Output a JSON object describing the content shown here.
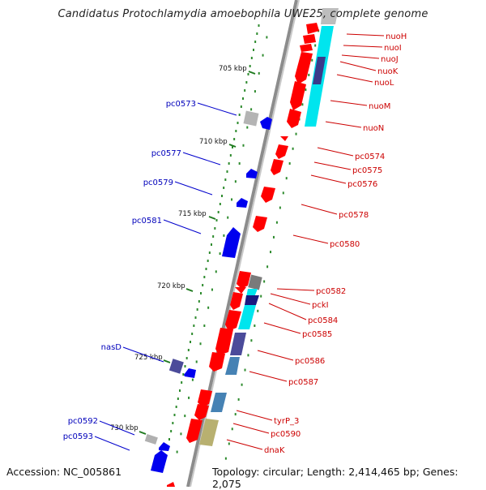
{
  "title": "Candidatus Protochlamydia amoebophila UWE25, complete genome",
  "accession": "Accession: NC_005861",
  "topology": "Topology: circular; Length: 2,414,465 bp; Genes: 2,075",
  "colors": {
    "forward_gene": "#ff0000",
    "reverse_gene": "#0000ee",
    "label_forward": "#cc0000",
    "label_reverse": "#0000bb",
    "backbone": "#888888",
    "tick": "#2a8a2a",
    "cyan_cog": "#00e5ee",
    "navy_cog": "#1a1a80",
    "slate_cog": "#4b4b9a",
    "steel_cog": "#4682b4",
    "olive_cog": "#b8b070",
    "grey_cog": "#a8a8a8"
  },
  "kbp_labels": [
    "705 kbp",
    "710 kbp",
    "715 kbp",
    "720 kbp",
    "725 kbp",
    "730 kbp"
  ],
  "left_labels": [
    "pc0573",
    "pc0577",
    "pc0579",
    "pc0581",
    "nasD",
    "pc0592",
    "pc0593"
  ],
  "right_labels": [
    "nuoH",
    "nuoI",
    "nuoJ",
    "nuoK",
    "nuoL",
    "nuoM",
    "nuoN",
    "pc0574",
    "pc0575",
    "pc0576",
    "pc0578",
    "pc0580",
    "pc0582",
    "pckI",
    "pc0584",
    "pc0585",
    "pc0586",
    "pc0587",
    "tyrP_3",
    "pc0590",
    "dnaK"
  ]
}
